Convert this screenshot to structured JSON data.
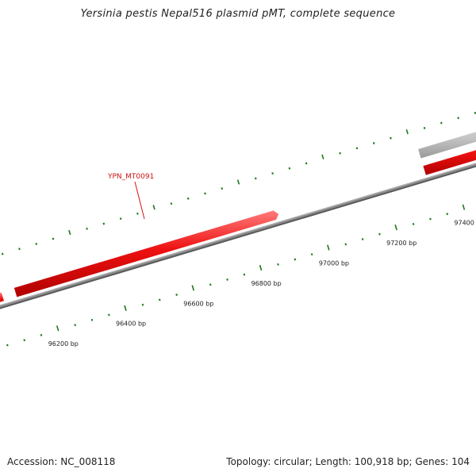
{
  "title": "Yersinia pestis Nepal516 plasmid pMT, complete sequence",
  "footer": {
    "accession": "Accession: NC_008118",
    "summary": "Topology: circular; Length: 100,918 bp; Genes: 104"
  },
  "colors": {
    "backbone": "#8a8a8a",
    "gene_forward": "#ee1111",
    "gene_other": "#c4c4c4",
    "tick": "#1a7a1a",
    "label_gene": "#cc1111"
  },
  "map": {
    "scale_labels": [
      {
        "bp": 96200,
        "text": "96200 bp"
      },
      {
        "bp": 96400,
        "text": "96400 bp"
      },
      {
        "bp": 96600,
        "text": "96600 bp"
      },
      {
        "bp": 96800,
        "text": "96800 bp"
      },
      {
        "bp": 97000,
        "text": "97000 bp"
      },
      {
        "bp": 97200,
        "text": "97200 bp"
      },
      {
        "bp": 97400,
        "text": "97400 bp"
      }
    ],
    "gene_label": "YPN_MT0091"
  }
}
